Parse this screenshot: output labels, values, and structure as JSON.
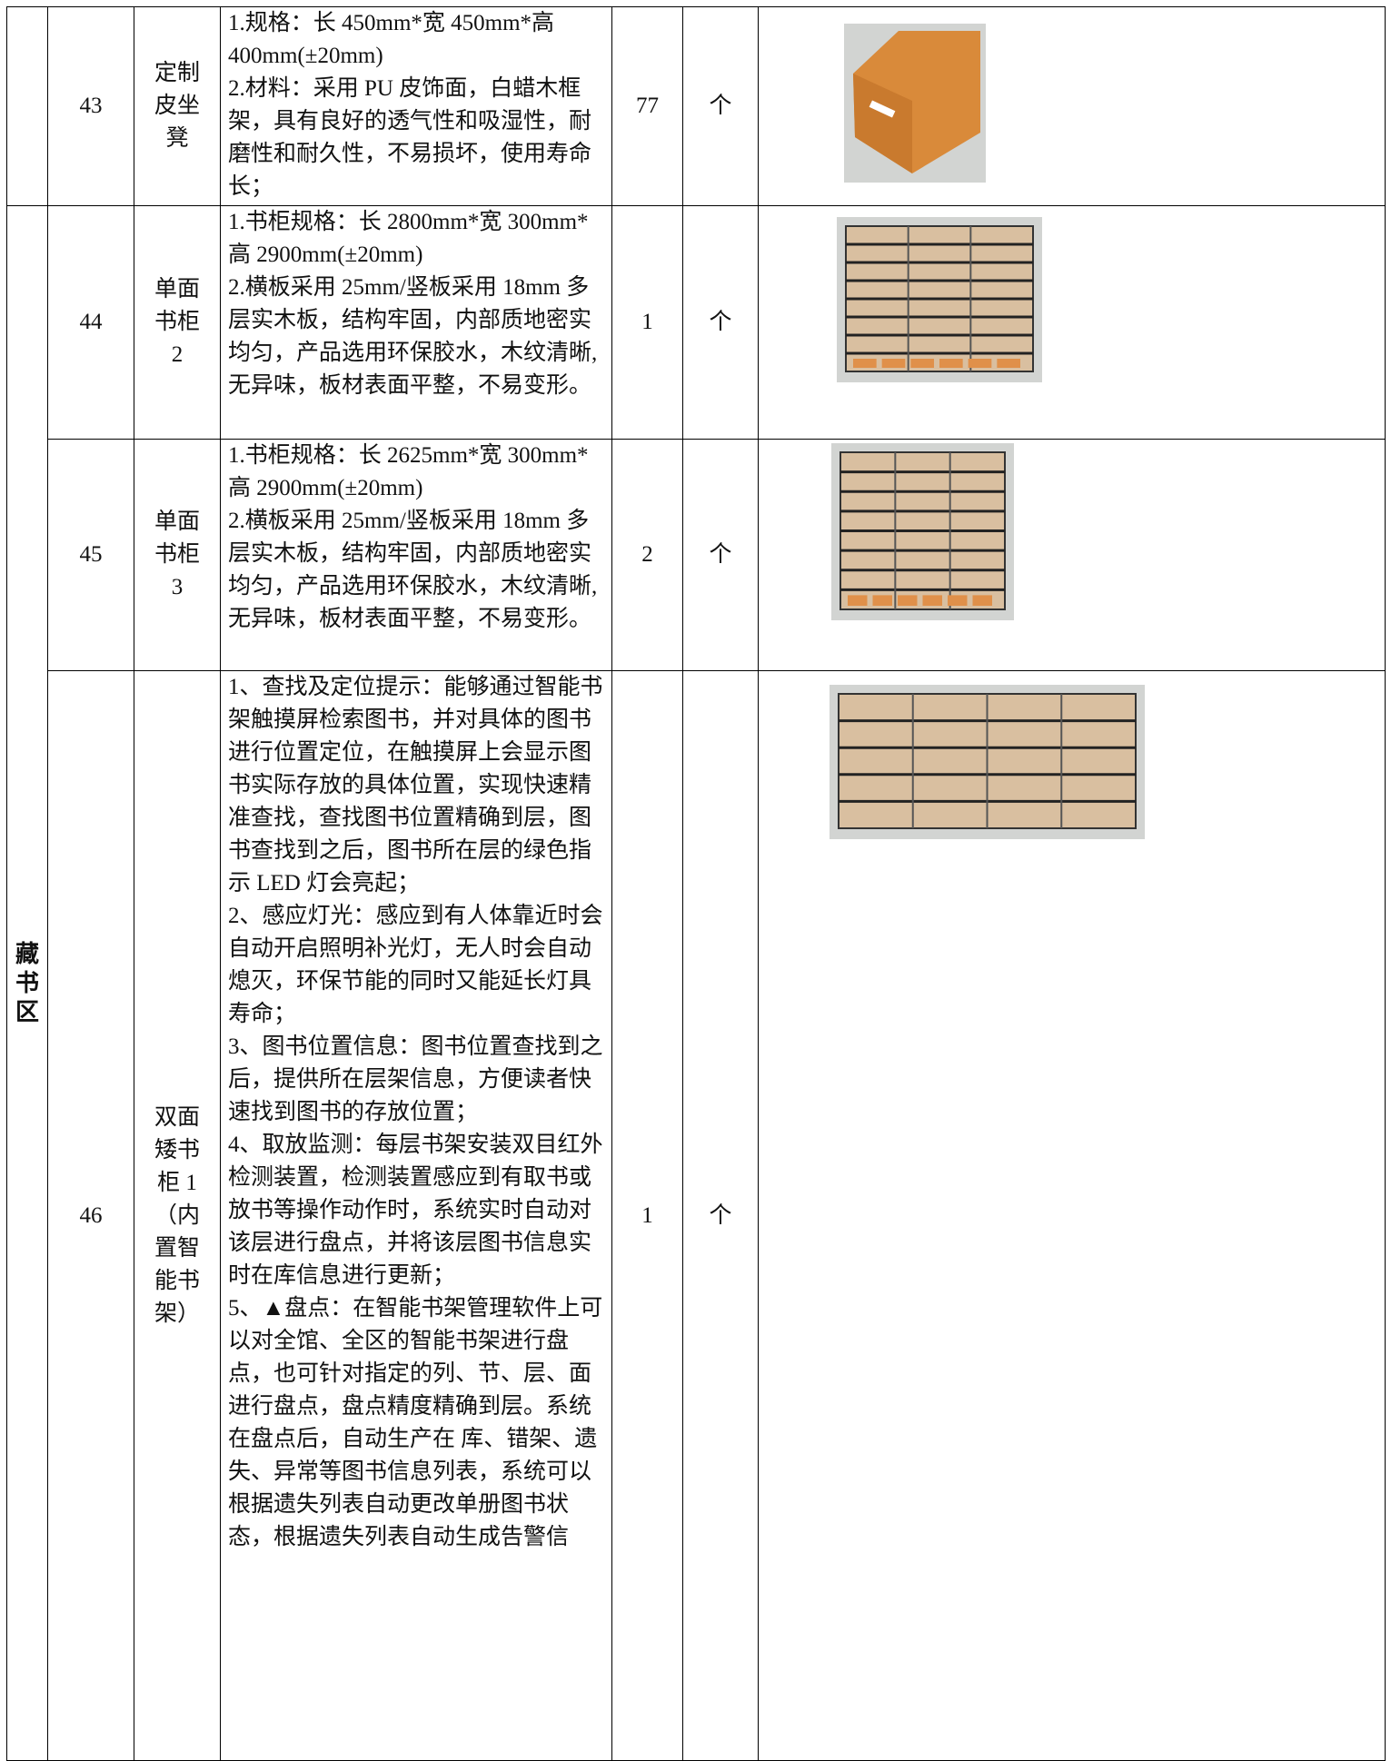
{
  "table": {
    "section": "藏书区",
    "rows": [
      {
        "no": "43",
        "name_lines": [
          "定制",
          "皮坐",
          "凳"
        ],
        "spec": [
          "1.规格：长 450mm*宽 450mm*高 400mm(±20mm)",
          "2.材料：采用 PU 皮饰面，白蜡木框架，具有良好的透气性和吸湿性，耐磨性和耐久性，不易损坏，使用寿命长；"
        ],
        "qty": "77",
        "unit": "个"
      },
      {
        "no": "44",
        "name_lines": [
          "单面",
          "书柜",
          "2"
        ],
        "spec": [
          "1.书柜规格：长 2800mm*宽 300mm*高 2900mm(±20mm)",
          "2.横板采用 25mm/竖板采用 18mm 多层实木板，结构牢固，内部质地密实均匀，产品选用环保胶水，木纹清晰,无异味，板材表面平整，不易变形。"
        ],
        "qty": "1",
        "unit": "个"
      },
      {
        "no": "45",
        "name_lines": [
          "单面",
          "书柜",
          "3"
        ],
        "spec": [
          "1.书柜规格：长 2625mm*宽 300mm*高 2900mm(±20mm)",
          "2.横板采用 25mm/竖板采用 18mm 多层实木板，结构牢固，内部质地密实均匀，产品选用环保胶水，木纹清晰,无异味，板材表面平整，不易变形。"
        ],
        "qty": "2",
        "unit": "个"
      },
      {
        "no": "46",
        "name_lines": [
          "双面",
          "矮书",
          "柜 1",
          "（内",
          "置智",
          "能书",
          "架）"
        ],
        "spec": [
          "1、查找及定位提示：能够通过智能书架触摸屏检索图书，并对具体的图书进行位置定位，在触摸屏上会显示图书实际存放的具体位置，实现快速精准查找，查找图书位置精确到层，图书查找到之后，图书所在层的绿色指示 LED 灯会亮起；",
          "2、感应灯光：感应到有人体靠近时会自动开启照明补光灯，无人时会自动熄灭，环保节能的同时又能延长灯具寿命；",
          "3、图书位置信息：图书位置查找到之后，提供所在层架信息，方便读者快速找到图书的存放位置；",
          "4、取放监测：每层书架安装双目红外检测装置，检测装置感应到有取书或放书等操作动作时，系统实时自动对该层进行盘点，并将该层图书信息实时在库信息进行更新；",
          "5、▲盘点：在智能书架管理软件上可以对全馆、全区的智能书架进行盘点，也可针对指定的列、节、层、面进行盘点，盘点精度精确到层。系统在盘点后，自动生产在 库、错架、遗失、异常等图书信息列表，系统可以根据遗失列表自动更改单册图书状态，根据遗失列表自动生成告警信"
        ],
        "qty": "1",
        "unit": "个"
      }
    ]
  }
}
